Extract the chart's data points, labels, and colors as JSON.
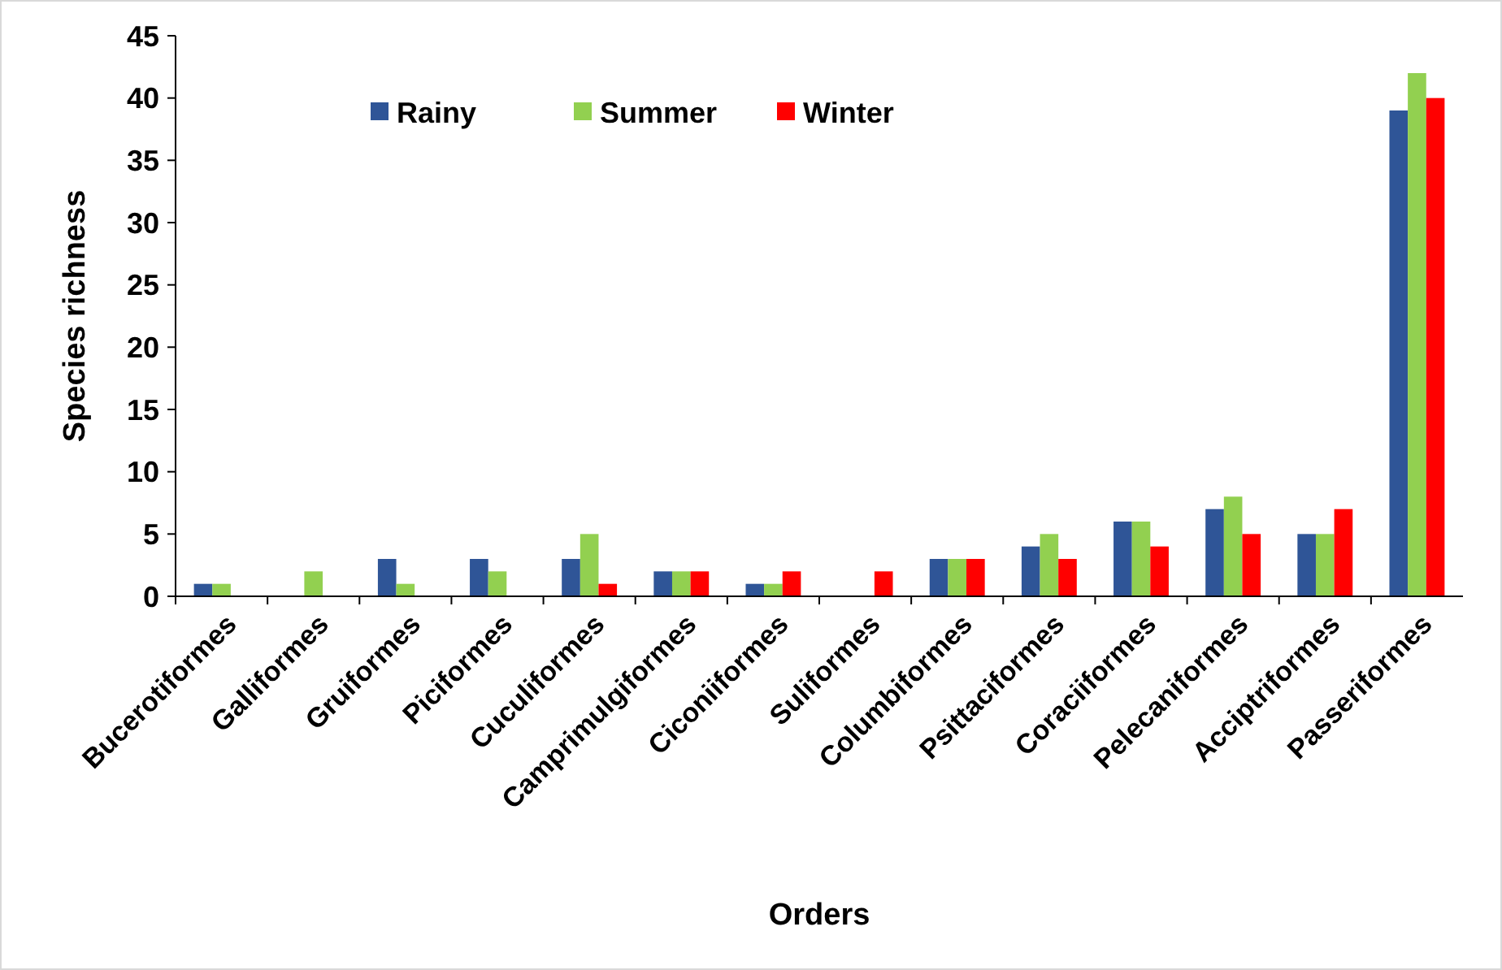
{
  "chart_data": {
    "type": "bar",
    "xlabel": "Orders",
    "ylabel": "Species richness",
    "categories": [
      "Bucerotiformes",
      "Galliformes",
      "Gruiformes",
      "Piciformes",
      "Cuculiformes",
      "Camprimulgiformes",
      "Ciconiiformes",
      "Suliformes",
      "Columbiformes",
      "Psittaciformes",
      "Coraciiformes",
      "Pelecaniformes",
      "Acciptriformes",
      "Passeriformes"
    ],
    "series": [
      {
        "name": "Rainy",
        "color": "#2f5597",
        "values": [
          1,
          0,
          3,
          3,
          3,
          2,
          1,
          0,
          3,
          4,
          6,
          7,
          5,
          39
        ]
      },
      {
        "name": "Summer",
        "color": "#92d050",
        "values": [
          1,
          2,
          1,
          2,
          5,
          2,
          1,
          0,
          3,
          5,
          6,
          8,
          5,
          42
        ]
      },
      {
        "name": "Winter",
        "color": "#ff0000",
        "values": [
          0,
          0,
          0,
          0,
          1,
          2,
          2,
          2,
          3,
          3,
          4,
          5,
          7,
          40
        ]
      }
    ],
    "ylim": [
      0,
      45
    ],
    "yticks": [
      0,
      5,
      10,
      15,
      20,
      25,
      30,
      35,
      40,
      45
    ],
    "grid": false,
    "legend": "top left"
  }
}
